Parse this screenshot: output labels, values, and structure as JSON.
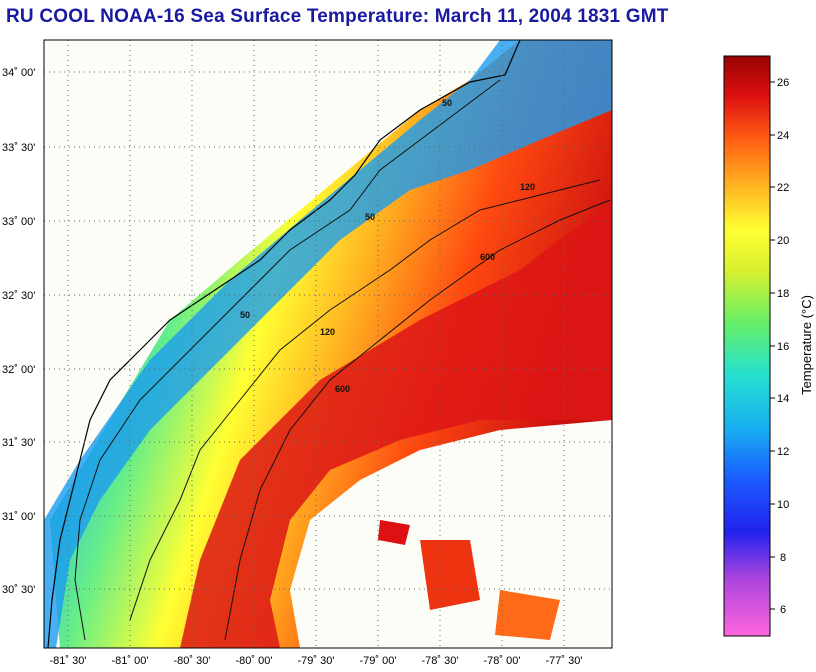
{
  "title": "RU COOL  NOAA-16  Sea Surface Temperature:  March 11, 2004 1831 GMT",
  "latitude_labels": [
    "34˚ 00'",
    "33˚ 30'",
    "33˚ 00'",
    "32˚ 30'",
    "32˚ 00'",
    "31˚ 30'",
    "31˚ 00'",
    "30˚ 30'"
  ],
  "longitude_labels": [
    "-81˚ 30'",
    "-81˚ 00'",
    "-80˚ 30'",
    "-80˚ 00'",
    "-79˚ 30'",
    "-79˚ 00'",
    "-78˚ 30'",
    "-78˚ 00'",
    "-77˚ 30'"
  ],
  "colorbar": {
    "label": "Temperature (°C)",
    "ticks": [
      "26",
      "24",
      "22",
      "20",
      "18",
      "16",
      "14",
      "12",
      "10",
      "8",
      "6"
    ],
    "range": [
      5,
      27
    ]
  },
  "contour_labels": {
    "c50": "50",
    "c120": "120",
    "c600": "600"
  },
  "colors": {
    "cold": "#1a5cff",
    "mid": "#ffff33",
    "warm": "#dd1111",
    "land": "#fdfdf8",
    "title": "#1a1aa0"
  }
}
